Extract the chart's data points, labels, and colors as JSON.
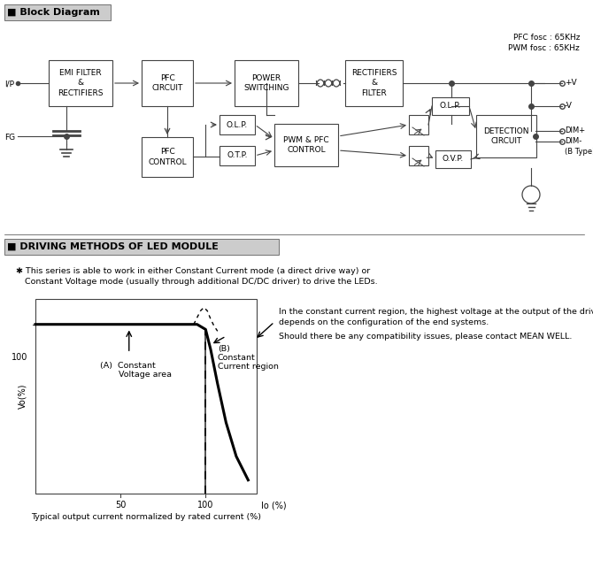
{
  "bg_color": "#ffffff",
  "title_block": "■ Block Diagram",
  "title_driving": "■ DRIVING METHODS OF LED MODULE",
  "pfc_fosc": "PFC fosc : 65KHz",
  "pwm_fosc": "PWM fosc : 65KHz",
  "driving_text": "✱ This series is able to work in either Constant Current mode (a direct drive way) or\n    Constant Voltage mode (usually through additional DC/DC driver) to drive the LEDs.",
  "note_line1": "In the constant current region, the highest voltage at the output of the driver",
  "note_line2": "depends on the configuration of the end systems.",
  "note_line3": "Should there be any compatibility issues, please contact MEAN WELL.",
  "caption": "Typical output current normalized by rated current (%)"
}
